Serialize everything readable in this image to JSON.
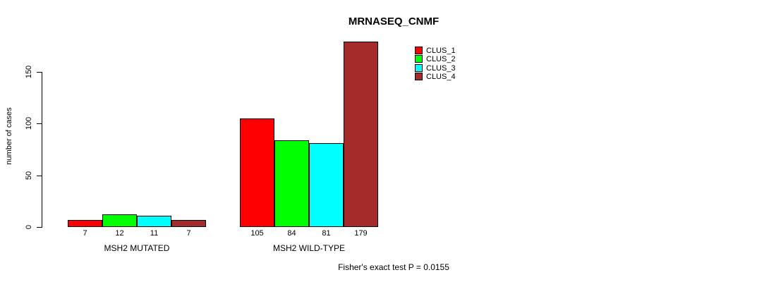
{
  "header": {
    "title": "MRNASEQ_CNMF"
  },
  "y_axis": {
    "label": "number of cases"
  },
  "footer": {
    "text": "Fisher's exact test P = 0.0155"
  },
  "chart_data": {
    "type": "bar",
    "title": "MRNASEQ_CNMF",
    "xlabel": "",
    "ylabel": "number of cases",
    "categories": [
      "MSH2 MUTATED",
      "MSH2 WILD-TYPE"
    ],
    "series": [
      {
        "name": "CLUS_1",
        "color": "#ff0000",
        "values": [
          7,
          105
        ]
      },
      {
        "name": "CLUS_2",
        "color": "#00ff00",
        "values": [
          12,
          84
        ]
      },
      {
        "name": "CLUS_3",
        "color": "#00ffff",
        "values": [
          11,
          81
        ]
      },
      {
        "name": "CLUS_4",
        "color": "#a52a2a",
        "values": [
          7,
          179
        ]
      }
    ],
    "bar_value_labels": [
      [
        7,
        12,
        11,
        7
      ],
      [
        105,
        84,
        81,
        179
      ]
    ],
    "y_ticks": [
      0,
      50,
      100,
      150
    ],
    "ylim": [
      0,
      180
    ],
    "grid": false,
    "legend_position": "top-right",
    "legend_entries": [
      "CLUS_1",
      "CLUS_2",
      "CLUS_3",
      "CLUS_4"
    ],
    "annotation": "Fisher's exact test P = 0.0155"
  }
}
